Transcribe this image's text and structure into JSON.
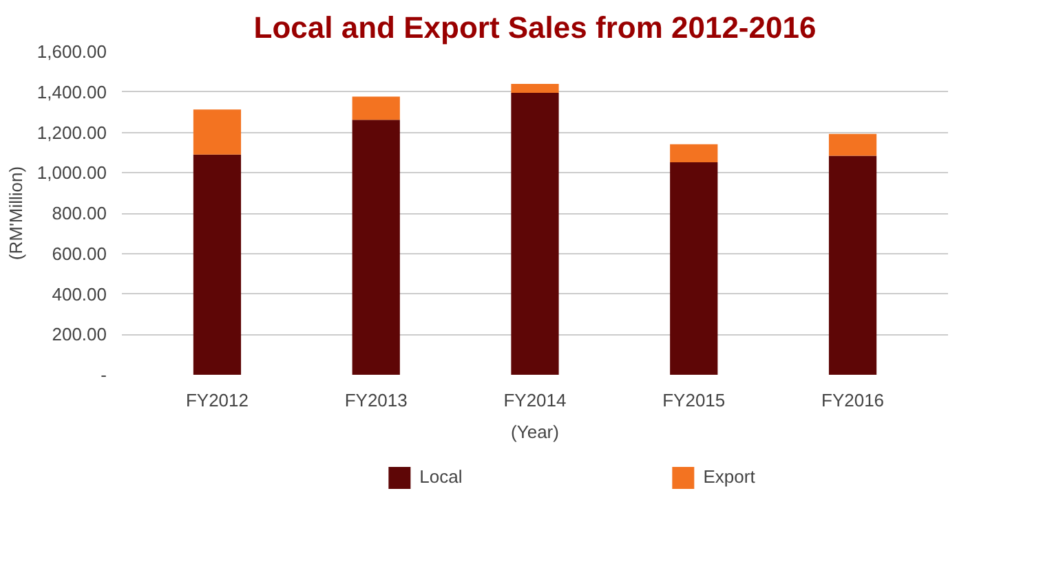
{
  "chart_data": {
    "type": "bar",
    "title": "Local and Export Sales from 2012-2016",
    "xlabel": "(Year)",
    "ylabel": "(RM'Million)",
    "categories": [
      "FY2012",
      "FY2013",
      "FY2014",
      "FY2015",
      "FY2016"
    ],
    "series": [
      {
        "name": "Local",
        "color": "#5e0606",
        "values": [
          1090,
          1262,
          1396,
          1052,
          1084
        ]
      },
      {
        "name": "Export",
        "color": "#f37321",
        "values": [
          223,
          115,
          44,
          89,
          108
        ]
      }
    ],
    "stacked": true,
    "ylim": [
      0,
      1600
    ],
    "yticks": [
      {
        "value": 0,
        "label": "-"
      },
      {
        "value": 200,
        "label": "200.00"
      },
      {
        "value": 400,
        "label": "400.00"
      },
      {
        "value": 600,
        "label": "600.00"
      },
      {
        "value": 800,
        "label": "800.00"
      },
      {
        "value": 1000,
        "label": "1,000.00"
      },
      {
        "value": 1200,
        "label": "1,200.00"
      },
      {
        "value": 1400,
        "label": "1,400.00"
      },
      {
        "value": 1600,
        "label": "1,600.00"
      }
    ],
    "grid": "y",
    "legend": "bottom"
  }
}
